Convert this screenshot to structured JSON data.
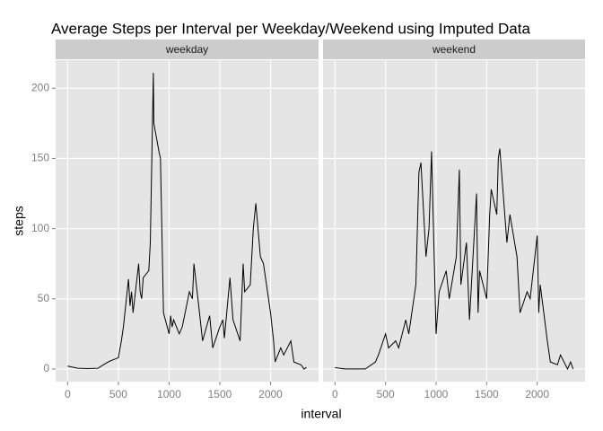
{
  "chart_data": {
    "type": "line",
    "title": "Average Steps per Interval per Weekday/Weekend using Imputed Data",
    "xlabel": "interval",
    "ylabel": "steps",
    "xlim": [
      -118,
      2473
    ],
    "ylim": [
      -9,
      220
    ],
    "xticks": [
      0,
      500,
      1000,
      1500,
      2000
    ],
    "yticks": [
      0,
      50,
      100,
      150,
      200
    ],
    "grid": true,
    "color": "#000000",
    "facets": [
      {
        "label": "weekday",
        "x": [
          0,
          100,
          200,
          300,
          330,
          400,
          430,
          500,
          530,
          550,
          600,
          615,
          630,
          645,
          700,
          715,
          730,
          745,
          800,
          815,
          830,
          845,
          850,
          900,
          915,
          930,
          945,
          1000,
          1015,
          1030,
          1045,
          1100,
          1130,
          1200,
          1230,
          1245,
          1300,
          1330,
          1400,
          1430,
          1500,
          1530,
          1545,
          1600,
          1630,
          1700,
          1730,
          1745,
          1800,
          1830,
          1855,
          1900,
          1930,
          2000,
          2030,
          2045,
          2100,
          2130,
          2200,
          2230,
          2300,
          2330,
          2355
        ],
        "values": [
          2,
          0.5,
          0.3,
          0.5,
          2,
          5,
          6,
          8,
          20,
          30,
          64,
          45,
          55,
          40,
          75,
          55,
          50,
          65,
          70,
          90,
          150,
          211,
          175,
          155,
          150,
          95,
          40,
          25,
          38,
          30,
          35,
          25,
          30,
          55,
          50,
          75,
          40,
          20,
          38,
          15,
          30,
          35,
          22,
          65,
          35,
          20,
          75,
          55,
          60,
          100,
          118,
          80,
          75,
          40,
          20,
          5,
          15,
          10,
          20,
          5,
          3,
          0,
          1
        ]
      },
      {
        "label": "weekend",
        "x": [
          0,
          100,
          200,
          300,
          400,
          430,
          500,
          530,
          600,
          630,
          700,
          730,
          800,
          830,
          850,
          900,
          930,
          955,
          1000,
          1030,
          1100,
          1130,
          1200,
          1230,
          1245,
          1300,
          1330,
          1400,
          1415,
          1430,
          1500,
          1530,
          1545,
          1600,
          1615,
          1630,
          1700,
          1730,
          1800,
          1830,
          1900,
          1930,
          2000,
          2015,
          2030,
          2100,
          2130,
          2200,
          2230,
          2300,
          2330,
          2355
        ],
        "values": [
          1,
          0,
          0,
          0,
          5,
          10,
          25,
          15,
          20,
          15,
          35,
          25,
          60,
          140,
          147,
          80,
          100,
          155,
          25,
          55,
          70,
          50,
          80,
          142,
          60,
          90,
          35,
          125,
          40,
          70,
          50,
          110,
          128,
          110,
          150,
          157,
          90,
          110,
          80,
          40,
          55,
          50,
          95,
          40,
          60,
          20,
          5,
          3,
          10,
          0,
          5,
          0
        ]
      }
    ]
  }
}
